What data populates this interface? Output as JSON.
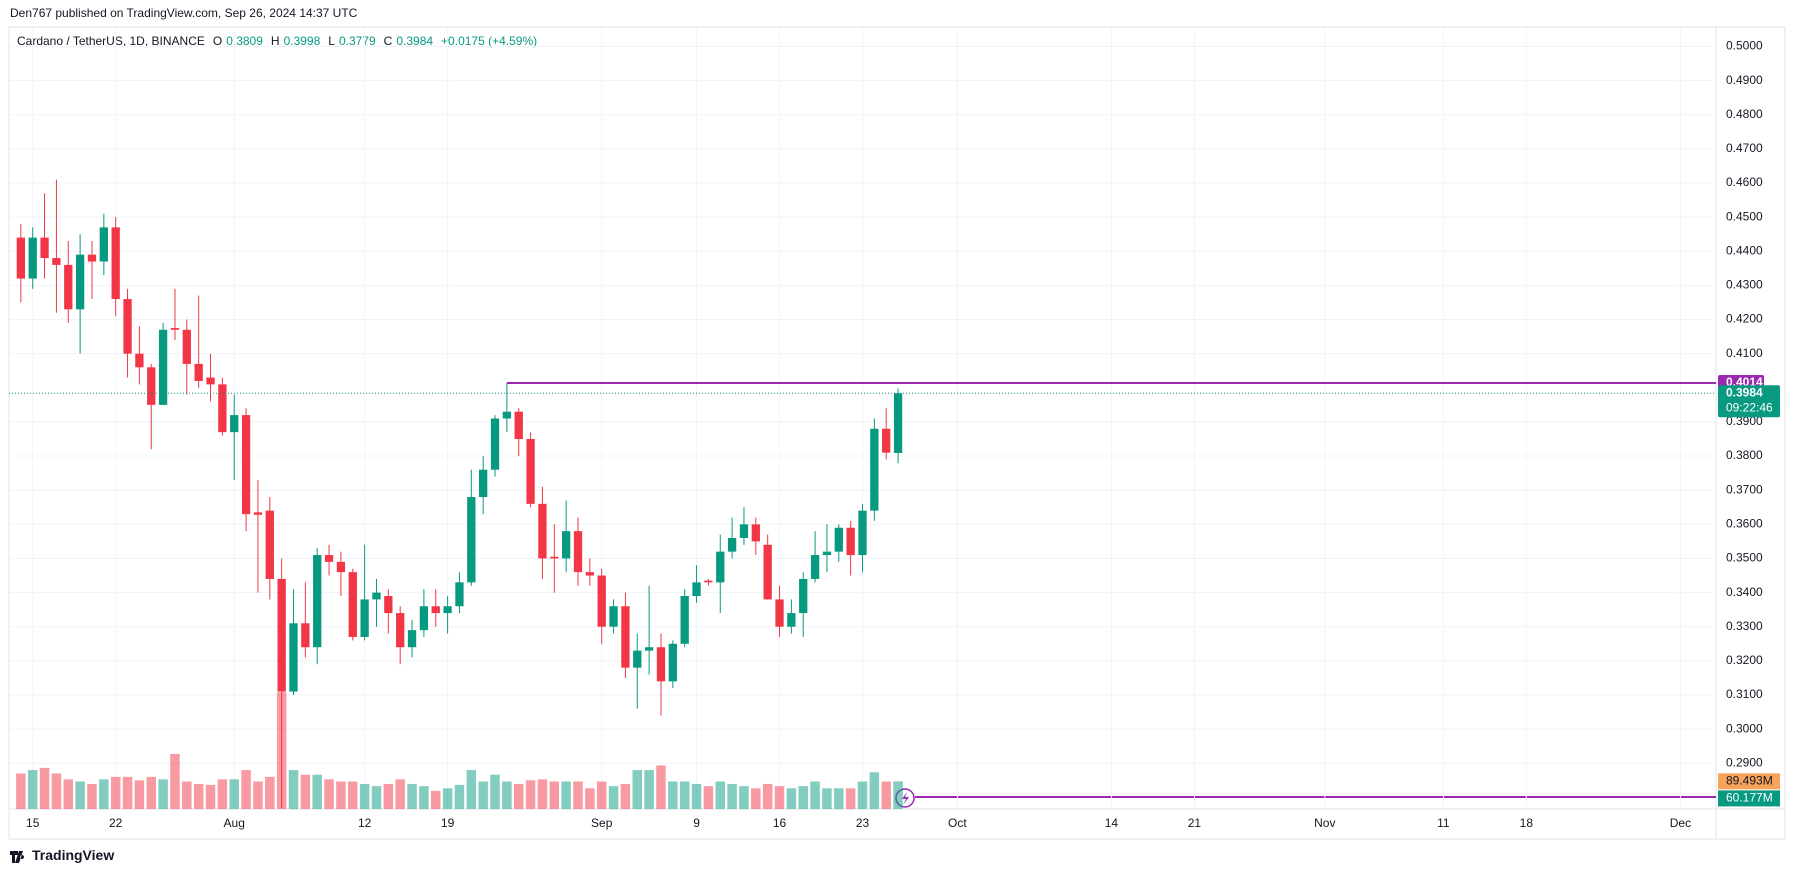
{
  "chart_data": {
    "type": "candlestick",
    "header": "Den767 published on TradingView.com, Sep 26, 2024 14:37 UTC",
    "title": "Cardano / TetherUS, 1D, BINANCE",
    "ohlc_legend": [
      {
        "key": "O",
        "value": 0.3809
      },
      {
        "key": "H",
        "value": 0.3998
      },
      {
        "key": "L",
        "value": 0.3779
      },
      {
        "key": "C",
        "value": 0.3984
      }
    ],
    "change_label": "+0.0175 (+4.59%)",
    "brand": "TradingView",
    "up_color": "#089981",
    "down_color": "#f23645",
    "x": [
      "2024-07-14",
      "2024-07-15",
      "2024-07-16",
      "2024-07-17",
      "2024-07-18",
      "2024-07-19",
      "2024-07-20",
      "2024-07-21",
      "2024-07-22",
      "2024-07-23",
      "2024-07-24",
      "2024-07-25",
      "2024-07-26",
      "2024-07-27",
      "2024-07-28",
      "2024-07-29",
      "2024-07-30",
      "2024-07-31",
      "2024-08-01",
      "2024-08-02",
      "2024-08-03",
      "2024-08-04",
      "2024-08-05",
      "2024-08-06",
      "2024-08-07",
      "2024-08-08",
      "2024-08-09",
      "2024-08-10",
      "2024-08-11",
      "2024-08-12",
      "2024-08-13",
      "2024-08-14",
      "2024-08-15",
      "2024-08-16",
      "2024-08-17",
      "2024-08-18",
      "2024-08-19",
      "2024-08-20",
      "2024-08-21",
      "2024-08-22",
      "2024-08-23",
      "2024-08-24",
      "2024-08-25",
      "2024-08-26",
      "2024-08-27",
      "2024-08-28",
      "2024-08-29",
      "2024-08-30",
      "2024-08-31",
      "2024-09-01",
      "2024-09-02",
      "2024-09-03",
      "2024-09-04",
      "2024-09-05",
      "2024-09-06",
      "2024-09-07",
      "2024-09-08",
      "2024-09-09",
      "2024-09-10",
      "2024-09-11",
      "2024-09-12",
      "2024-09-13",
      "2024-09-14",
      "2024-09-15",
      "2024-09-16",
      "2024-09-17",
      "2024-09-18",
      "2024-09-19",
      "2024-09-20",
      "2024-09-21",
      "2024-09-22",
      "2024-09-23",
      "2024-09-24",
      "2024-09-25",
      "2024-09-26"
    ],
    "open": [
      0.444,
      0.432,
      0.444,
      0.438,
      0.436,
      0.423,
      0.439,
      0.437,
      0.447,
      0.426,
      0.41,
      0.406,
      0.395,
      0.4175,
      0.417,
      0.407,
      0.403,
      0.401,
      0.387,
      0.392,
      0.3635,
      0.364,
      0.344,
      0.311,
      0.331,
      0.324,
      0.351,
      0.349,
      0.346,
      0.327,
      0.338,
      0.339,
      0.334,
      0.324,
      0.329,
      0.336,
      0.334,
      0.336,
      0.343,
      0.368,
      0.376,
      0.391,
      0.393,
      0.385,
      0.366,
      0.3505,
      0.35,
      0.358,
      0.346,
      0.345,
      0.33,
      0.336,
      0.318,
      0.323,
      0.324,
      0.314,
      0.325,
      0.339,
      0.3435,
      0.343,
      0.352,
      0.356,
      0.36,
      0.354,
      0.338,
      0.33,
      0.334,
      0.344,
      0.351,
      0.352,
      0.359,
      0.351,
      0.364,
      0.388,
      0.3809
    ],
    "high": [
      0.448,
      0.447,
      0.457,
      0.461,
      0.443,
      0.445,
      0.443,
      0.451,
      0.45,
      0.429,
      0.418,
      0.407,
      0.419,
      0.429,
      0.42,
      0.427,
      0.41,
      0.403,
      0.398,
      0.394,
      0.373,
      0.368,
      0.35,
      0.341,
      0.343,
      0.353,
      0.354,
      0.352,
      0.347,
      0.354,
      0.344,
      0.341,
      0.336,
      0.332,
      0.341,
      0.341,
      0.339,
      0.346,
      0.376,
      0.38,
      0.392,
      0.4014,
      0.394,
      0.387,
      0.371,
      0.36,
      0.367,
      0.362,
      0.35,
      0.347,
      0.338,
      0.34,
      0.328,
      0.342,
      0.328,
      0.326,
      0.341,
      0.348,
      0.344,
      0.357,
      0.362,
      0.365,
      0.362,
      0.357,
      0.342,
      0.338,
      0.346,
      0.358,
      0.36,
      0.36,
      0.361,
      0.366,
      0.391,
      0.394,
      0.3998
    ],
    "low": [
      0.425,
      0.429,
      0.432,
      0.422,
      0.419,
      0.41,
      0.426,
      0.433,
      0.421,
      0.403,
      0.401,
      0.382,
      0.395,
      0.414,
      0.398,
      0.4,
      0.396,
      0.386,
      0.373,
      0.358,
      0.34,
      0.338,
      0.277,
      0.31,
      0.321,
      0.319,
      0.345,
      0.339,
      0.326,
      0.326,
      0.33,
      0.328,
      0.319,
      0.321,
      0.327,
      0.33,
      0.328,
      0.334,
      0.342,
      0.363,
      0.374,
      0.387,
      0.38,
      0.365,
      0.344,
      0.34,
      0.346,
      0.342,
      0.342,
      0.325,
      0.328,
      0.315,
      0.306,
      0.316,
      0.304,
      0.312,
      0.324,
      0.337,
      0.342,
      0.334,
      0.35,
      0.354,
      0.351,
      0.338,
      0.327,
      0.328,
      0.327,
      0.343,
      0.346,
      0.349,
      0.345,
      0.346,
      0.361,
      0.379,
      0.3779
    ],
    "close": [
      0.432,
      0.444,
      0.438,
      0.436,
      0.423,
      0.439,
      0.437,
      0.447,
      0.426,
      0.41,
      0.406,
      0.395,
      0.417,
      0.417,
      0.407,
      0.402,
      0.401,
      0.387,
      0.392,
      0.363,
      0.3628,
      0.344,
      0.311,
      0.331,
      0.324,
      0.351,
      0.349,
      0.346,
      0.327,
      0.338,
      0.34,
      0.334,
      0.324,
      0.329,
      0.336,
      0.334,
      0.336,
      0.343,
      0.368,
      0.376,
      0.391,
      0.393,
      0.385,
      0.366,
      0.35,
      0.35,
      0.358,
      0.346,
      0.345,
      0.33,
      0.336,
      0.318,
      0.323,
      0.324,
      0.314,
      0.325,
      0.339,
      0.343,
      0.343,
      0.352,
      0.356,
      0.36,
      0.355,
      0.338,
      0.33,
      0.334,
      0.344,
      0.351,
      0.352,
      0.359,
      0.351,
      0.364,
      0.388,
      0.381,
      0.3984
    ],
    "volume": [
      115,
      126,
      133,
      115,
      96,
      89,
      81,
      96,
      104,
      104,
      93,
      104,
      96,
      178,
      89,
      81,
      78,
      96,
      96,
      126,
      89,
      104,
      378,
      126,
      111,
      111,
      96,
      89,
      89,
      81,
      74,
      81,
      96,
      81,
      74,
      59,
      67,
      78,
      126,
      89,
      111,
      89,
      81,
      93,
      96,
      89,
      89,
      89,
      67,
      89,
      74,
      81,
      126,
      126,
      141,
      89,
      89,
      81,
      74,
      89,
      81,
      74,
      67,
      81,
      74,
      67,
      74,
      89,
      67,
      67,
      67,
      89,
      119,
      89,
      89.493
    ],
    "volume_last_label": "89.493M",
    "volume_ma": {
      "value": 60.177,
      "label": "60.177M"
    },
    "ylim": [
      0.2766,
      0.5057
    ],
    "yticks": [
      {
        "value": 0.29,
        "label": "0.2900"
      },
      {
        "value": 0.3,
        "label": "0.3000"
      },
      {
        "value": 0.31,
        "label": "0.3100"
      },
      {
        "value": 0.32,
        "label": "0.3200"
      },
      {
        "value": 0.33,
        "label": "0.3300"
      },
      {
        "value": 0.34,
        "label": "0.3400"
      },
      {
        "value": 0.35,
        "label": "0.3500"
      },
      {
        "value": 0.36,
        "label": "0.3600"
      },
      {
        "value": 0.37,
        "label": "0.3700"
      },
      {
        "value": 0.38,
        "label": "0.3800"
      },
      {
        "value": 0.39,
        "label": "0.3900"
      },
      {
        "value": 0.41,
        "label": "0.4100"
      },
      {
        "value": 0.42,
        "label": "0.4200"
      },
      {
        "value": 0.43,
        "label": "0.4300"
      },
      {
        "value": 0.44,
        "label": "0.4400"
      },
      {
        "value": 0.45,
        "label": "0.4500"
      },
      {
        "value": 0.46,
        "label": "0.4600"
      },
      {
        "value": 0.47,
        "label": "0.4700"
      },
      {
        "value": 0.48,
        "label": "0.4800"
      },
      {
        "value": 0.49,
        "label": "0.4900"
      },
      {
        "value": 0.5,
        "label": "0.5000"
      }
    ],
    "xlim": [
      "2024-07-13",
      "2024-12-04"
    ],
    "xticks": [
      {
        "value": "2024-07-15",
        "label": "15"
      },
      {
        "value": "2024-07-22",
        "label": "22"
      },
      {
        "value": "2024-08-01",
        "label": "Aug"
      },
      {
        "value": "2024-08-12",
        "label": "12"
      },
      {
        "value": "2024-08-19",
        "label": "19"
      },
      {
        "value": "2024-09-01",
        "label": "Sep"
      },
      {
        "value": "2024-09-09",
        "label": "9"
      },
      {
        "value": "2024-09-16",
        "label": "16"
      },
      {
        "value": "2024-09-23",
        "label": "23"
      },
      {
        "value": "2024-10-01",
        "label": "Oct"
      },
      {
        "value": "2024-10-14",
        "label": "14"
      },
      {
        "value": "2024-10-21",
        "label": "21"
      },
      {
        "value": "2024-11-01",
        "label": "Nov"
      },
      {
        "value": "2024-11-11",
        "label": "11"
      },
      {
        "value": "2024-11-18",
        "label": "18"
      },
      {
        "value": "2024-12-01",
        "label": "Dec"
      }
    ],
    "grid": true,
    "price_line": {
      "value": 0.4014,
      "label": "0.4014",
      "start": "2024-08-24",
      "color": "#9c27b0"
    },
    "last_price": {
      "value": 0.3984,
      "label": "0.3984",
      "countdown": "09:22:46"
    }
  }
}
